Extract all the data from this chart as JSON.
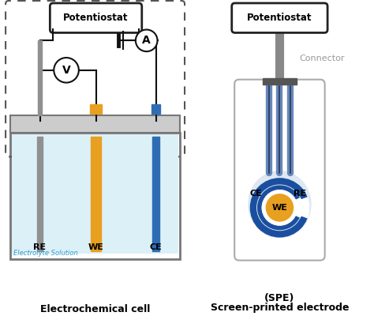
{
  "bg_color": "#ffffff",
  "left_title": "Electrochemical cell",
  "electrolyte_label": "Electrolyte Solution",
  "connector_label": "Connector",
  "potentiostat_label": "Potentiostat",
  "we_label": "WE",
  "ce_label": "CE",
  "re_label": "RE",
  "color_we": "#E8A020",
  "color_ce": "#2E6DB4",
  "color_re": "#909090",
  "color_solution": "#DCF0F8",
  "color_blue_ring": "#1A4FA0",
  "color_we_gold": "#E8A020",
  "color_connector_gray": "#888888",
  "color_spe_body": "#f0f4f8",
  "color_spe_border": "#aaaaaa",
  "color_lid": "#cccccc",
  "color_lid_border": "#777777",
  "color_beaker_border": "#777777",
  "color_dashed": "#555555",
  "color_pot_border": "#222222",
  "color_wire": "#111111",
  "color_spe_lines": "#6688bb",
  "color_spe_line_dark": "#334466"
}
